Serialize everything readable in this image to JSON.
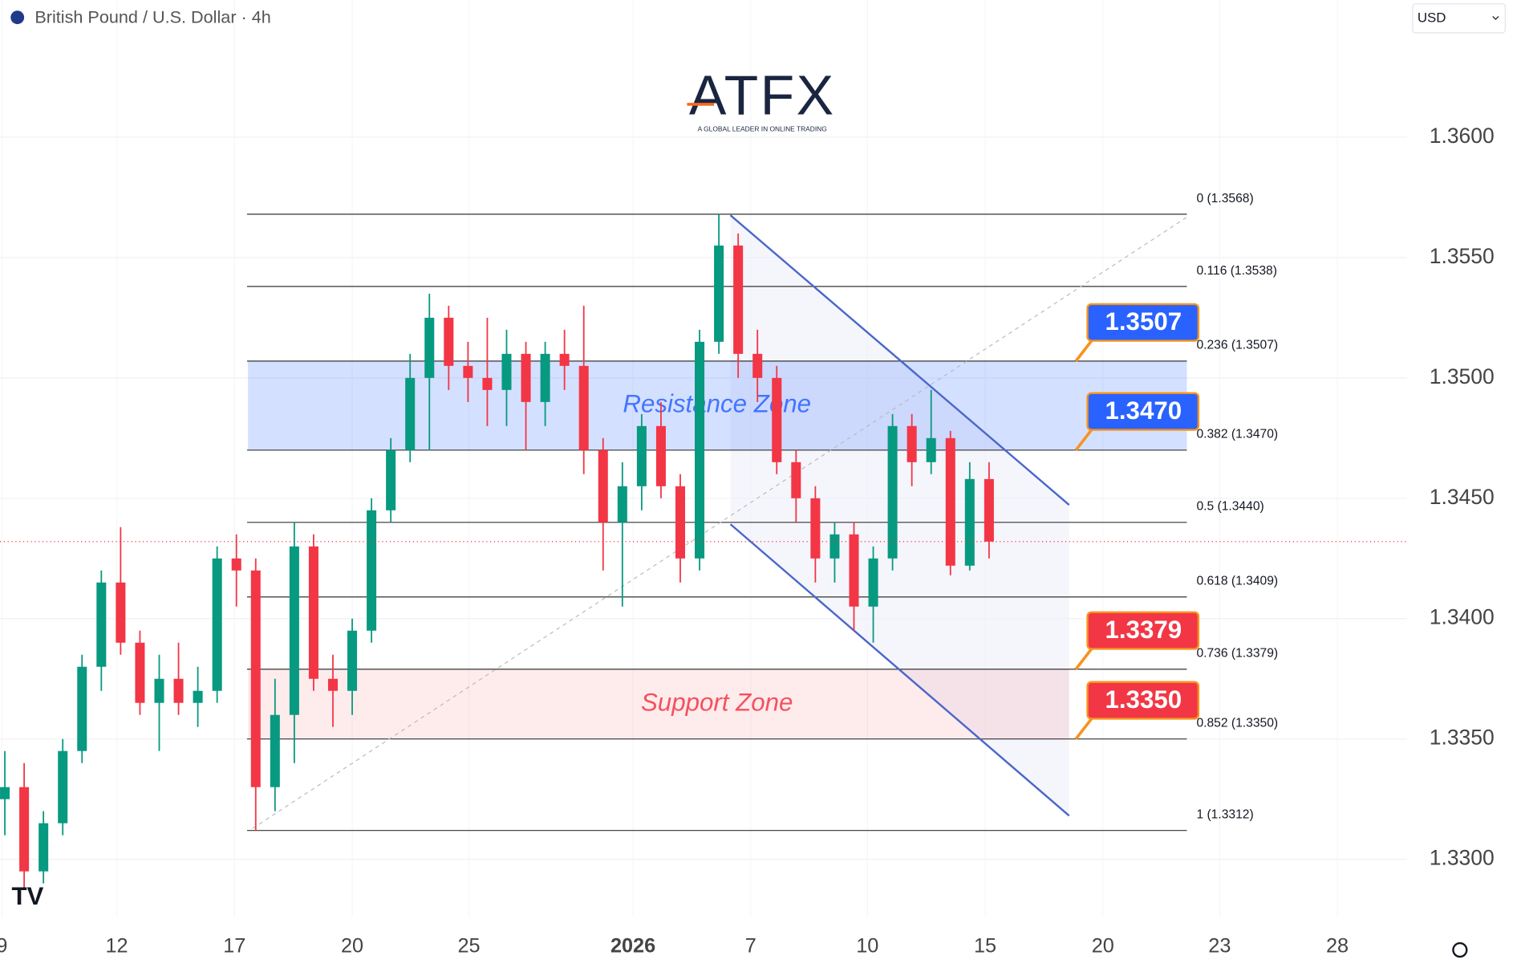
{
  "chart_data": {
    "type": "candlestick",
    "title": "British Pound / U.S. Dollar · 4h",
    "currency": "USD",
    "brand": "ATFX",
    "tagline": "A GLOBAL LEADER IN ONLINE TRADING",
    "x_labels": [
      "9",
      "12",
      "17",
      "20",
      "25",
      "2026",
      "7",
      "10",
      "15",
      "20",
      "23",
      "28"
    ],
    "up_color": "#089981",
    "down_color": "#f23645",
    "candles": {
      "open": [
        1.3325,
        1.333,
        1.3295,
        1.3315,
        1.3345,
        1.338,
        1.3415,
        1.339,
        1.3365,
        1.3375,
        1.3365,
        1.337,
        1.3425,
        1.342,
        1.333,
        1.336,
        1.343,
        1.3375,
        1.337,
        1.3395,
        1.3445,
        1.347,
        1.35,
        1.3525,
        1.3505,
        1.35,
        1.3495,
        1.351,
        1.349,
        1.351,
        1.3505,
        1.347,
        1.344,
        1.3455,
        1.348,
        1.3455,
        1.3425,
        1.3515,
        1.3555,
        1.351,
        1.35,
        1.3465,
        1.345,
        1.3425,
        1.3435,
        1.3405,
        1.3425,
        1.348,
        1.3465,
        1.3475,
        1.3422,
        1.3458
      ],
      "high": [
        1.3345,
        1.334,
        1.332,
        1.335,
        1.3385,
        1.342,
        1.3438,
        1.3395,
        1.3385,
        1.339,
        1.338,
        1.343,
        1.3435,
        1.3425,
        1.3375,
        1.344,
        1.3435,
        1.3385,
        1.34,
        1.345,
        1.3475,
        1.351,
        1.3535,
        1.353,
        1.3515,
        1.3525,
        1.352,
        1.3515,
        1.3515,
        1.352,
        1.353,
        1.3475,
        1.3465,
        1.3485,
        1.349,
        1.346,
        1.352,
        1.3568,
        1.356,
        1.352,
        1.3505,
        1.347,
        1.3455,
        1.344,
        1.344,
        1.343,
        1.3485,
        1.3485,
        1.3495,
        1.3478,
        1.3465,
        1.3465
      ],
      "low": [
        1.331,
        1.3288,
        1.329,
        1.331,
        1.334,
        1.337,
        1.3385,
        1.336,
        1.3345,
        1.336,
        1.3355,
        1.3365,
        1.3405,
        1.3312,
        1.332,
        1.334,
        1.337,
        1.3355,
        1.336,
        1.339,
        1.344,
        1.3465,
        1.347,
        1.3495,
        1.349,
        1.348,
        1.348,
        1.347,
        1.348,
        1.3495,
        1.346,
        1.342,
        1.3405,
        1.3445,
        1.345,
        1.3415,
        1.342,
        1.351,
        1.35,
        1.349,
        1.346,
        1.344,
        1.3415,
        1.3415,
        1.3395,
        1.339,
        1.342,
        1.3455,
        1.346,
        1.3418,
        1.342,
        1.3425
      ],
      "close": [
        1.333,
        1.3295,
        1.3315,
        1.3345,
        1.338,
        1.3415,
        1.339,
        1.3365,
        1.3375,
        1.3365,
        1.337,
        1.3425,
        1.342,
        1.333,
        1.336,
        1.343,
        1.3375,
        1.337,
        1.3395,
        1.3445,
        1.347,
        1.35,
        1.3525,
        1.3505,
        1.35,
        1.3495,
        1.351,
        1.349,
        1.351,
        1.3505,
        1.347,
        1.344,
        1.3455,
        1.348,
        1.3455,
        1.3425,
        1.3515,
        1.3555,
        1.351,
        1.35,
        1.3465,
        1.345,
        1.3425,
        1.3435,
        1.3405,
        1.3425,
        1.348,
        1.3465,
        1.3475,
        1.3422,
        1.3458,
        1.3432
      ]
    },
    "ylim": [
      1.3276,
      1.3657
    ],
    "yticks": [
      {
        "value": 1.33,
        "label": "1.3300"
      },
      {
        "value": 1.335,
        "label": "1.3350"
      },
      {
        "value": 1.34,
        "label": "1.3400"
      },
      {
        "value": 1.345,
        "label": "1.3450"
      },
      {
        "value": 1.35,
        "label": "1.3500"
      },
      {
        "value": 1.355,
        "label": "1.3550"
      },
      {
        "value": 1.36,
        "label": "1.3600"
      }
    ],
    "grid": true,
    "fib_levels": [
      {
        "value": 1.3568,
        "label": "0 (1.3568)"
      },
      {
        "value": 1.3538,
        "label": "0.116 (1.3538)"
      },
      {
        "value": 1.3507,
        "label": "0.236 (1.3507)"
      },
      {
        "value": 1.347,
        "label": "0.382 (1.3470)"
      },
      {
        "value": 1.344,
        "label": "0.5 (1.3440)"
      },
      {
        "value": 1.3409,
        "label": "0.618 (1.3409)"
      },
      {
        "value": 1.3379,
        "label": "0.736 (1.3379)"
      },
      {
        "value": 1.335,
        "label": "0.852 (1.3350)"
      },
      {
        "value": 1.3312,
        "label": "1 (1.3312)"
      }
    ],
    "zones": [
      {
        "name": "Resistance Zone",
        "from": 1.347,
        "to": 1.3507,
        "color": "#2962ff"
      },
      {
        "name": "Support Zone",
        "from": 1.335,
        "to": 1.3379,
        "color": "#f23645"
      }
    ],
    "callouts": [
      {
        "value": 1.3507,
        "label": "1.3507",
        "color": "#2962ff"
      },
      {
        "value": 1.347,
        "label": "1.3470",
        "color": "#2962ff"
      },
      {
        "value": 1.3379,
        "label": "1.3379",
        "color": "#f23645"
      },
      {
        "value": 1.335,
        "label": "1.3350",
        "color": "#f23645"
      }
    ]
  }
}
